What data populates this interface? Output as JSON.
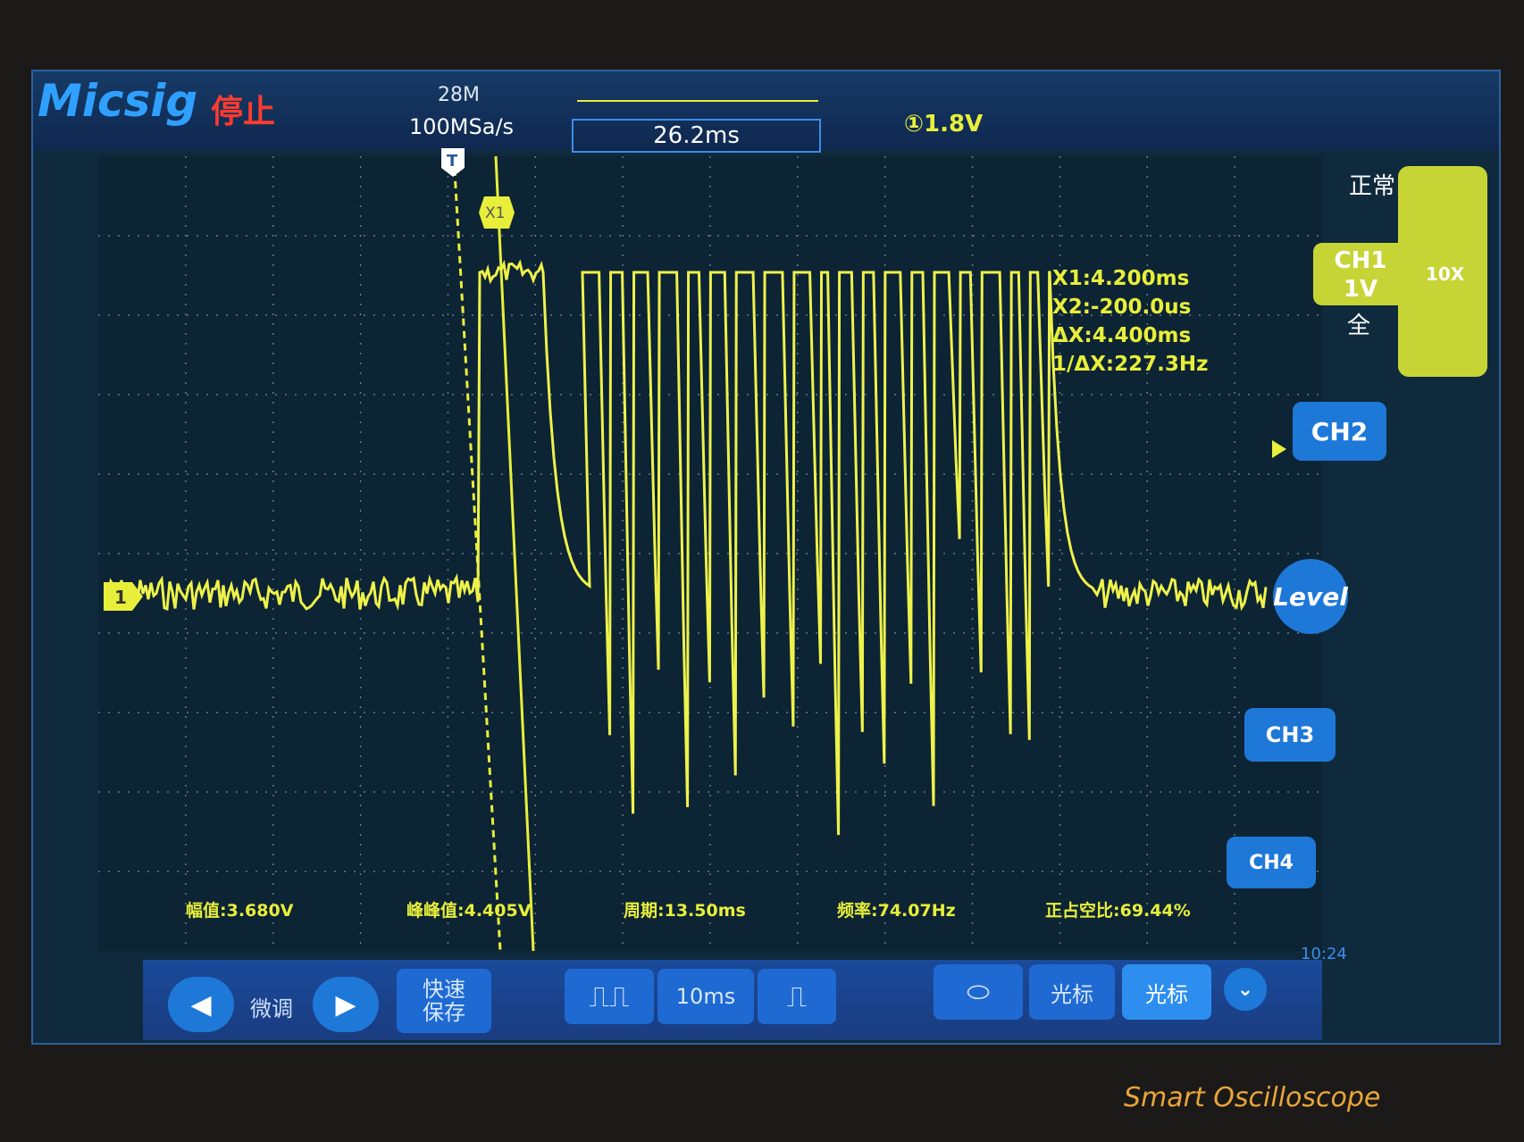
{
  "header": {
    "brand": "Micsig",
    "status": "停止",
    "memory_depth": "28M",
    "sample_rate": "100MSa/s",
    "time_position": "26.2ms",
    "trigger_level": "①1.8V"
  },
  "markers": {
    "trigger": "T",
    "cursor": "X1",
    "channel": "1"
  },
  "cursors": [
    "X1:4.200ms",
    "X2:-200.0us",
    "ΔX:4.400ms",
    "1/ΔX:227.3Hz"
  ],
  "measurements": [
    "幅值:3.680V",
    "峰峰值:4.405V",
    "周期:13.50ms",
    "频率:74.07Hz",
    "正占空比:69.44%"
  ],
  "side_panel": {
    "trigger_mode": "正常",
    "ch1_label": "CH1",
    "ch1_scale": "1V",
    "coupling": "全",
    "probe": "10X",
    "ch2": "CH2",
    "level": "Level",
    "ch3": "CH3",
    "ch4": "CH4",
    "clock": "10:24"
  },
  "toolbar": {
    "fine_tune": "微调",
    "quick_save": [
      "快速",
      "保存"
    ],
    "timebase": "10ms",
    "cursor_1": "光标",
    "cursor_2": "光标"
  },
  "footer": "Smart Oscilloscope"
}
